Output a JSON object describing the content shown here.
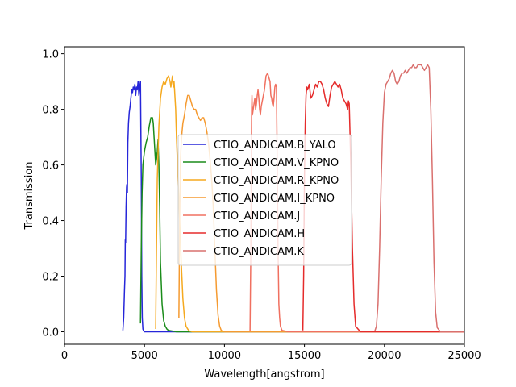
{
  "chart_data": {
    "type": "line",
    "title": "",
    "xlabel": "Wavelength[angstrom]",
    "ylabel": "Transmission",
    "xlim": [
      0,
      25000
    ],
    "ylim": [
      -0.045,
      1.025
    ],
    "xticks": [
      0,
      5000,
      10000,
      15000,
      20000,
      25000
    ],
    "xtick_labels": [
      "0",
      "5000",
      "10000",
      "15000",
      "20000",
      "25000"
    ],
    "yticks": [
      0.0,
      0.2,
      0.4,
      0.6,
      0.8,
      1.0
    ],
    "ytick_labels": [
      "0.0",
      "0.2",
      "0.4",
      "0.6",
      "0.8",
      "1.0"
    ],
    "grid": false,
    "legend_position": "center",
    "series": [
      {
        "name": "CTIO_ANDICAM.B_YALO",
        "color": "#2626d9",
        "x": [
          3650,
          3700,
          3750,
          3780,
          3800,
          3820,
          3850,
          3880,
          3900,
          3930,
          3960,
          4000,
          4050,
          4100,
          4150,
          4200,
          4250,
          4300,
          4350,
          4400,
          4450,
          4500,
          4550,
          4600,
          4650,
          4700,
          4750,
          4800,
          4830,
          4860,
          4900,
          4950,
          5000,
          5500,
          6000,
          8000,
          10000,
          15000,
          20000,
          25000
        ],
        "y": [
          0.005,
          0.05,
          0.15,
          0.2,
          0.33,
          0.32,
          0.45,
          0.52,
          0.53,
          0.5,
          0.68,
          0.75,
          0.79,
          0.81,
          0.84,
          0.87,
          0.86,
          0.88,
          0.87,
          0.89,
          0.85,
          0.88,
          0.87,
          0.9,
          0.85,
          0.88,
          0.9,
          0.55,
          0.2,
          0.05,
          0.01,
          0.003,
          0.0,
          0.0,
          0.0,
          0.0,
          0.0,
          0.0,
          0.0,
          0.0
        ]
      },
      {
        "name": "CTIO_ANDICAM.V_KPNO",
        "color": "#1a8c1a",
        "x": [
          4750,
          4800,
          4850,
          4900,
          5000,
          5100,
          5200,
          5300,
          5400,
          5500,
          5550,
          5600,
          5650,
          5700,
          5750,
          5800,
          5850,
          5900,
          5950,
          6000,
          6100,
          6200,
          6300,
          6400,
          6500,
          7000,
          8000,
          10000,
          15000,
          20000,
          25000
        ],
        "y": [
          0.03,
          0.3,
          0.5,
          0.6,
          0.65,
          0.68,
          0.7,
          0.74,
          0.77,
          0.77,
          0.75,
          0.7,
          0.65,
          0.6,
          0.62,
          0.65,
          0.69,
          0.6,
          0.45,
          0.25,
          0.1,
          0.04,
          0.02,
          0.01,
          0.005,
          0.0,
          0.0,
          0.0,
          0.0,
          0.0,
          0.0
        ]
      },
      {
        "name": "CTIO_ANDICAM.R_KPNO",
        "color": "#f5a91f",
        "x": [
          5700,
          5750,
          5800,
          5900,
          6000,
          6100,
          6200,
          6300,
          6400,
          6500,
          6600,
          6650,
          6700,
          6750,
          6800,
          6850,
          6900,
          6950,
          7000,
          7100,
          7200,
          7300,
          7400,
          7500,
          7600,
          7700,
          7800,
          8000,
          9000,
          10000,
          15000,
          20000,
          25000
        ],
        "y": [
          0.01,
          0.3,
          0.55,
          0.74,
          0.84,
          0.88,
          0.9,
          0.89,
          0.91,
          0.92,
          0.9,
          0.88,
          0.9,
          0.92,
          0.88,
          0.9,
          0.85,
          0.8,
          0.7,
          0.55,
          0.4,
          0.25,
          0.12,
          0.05,
          0.02,
          0.01,
          0.003,
          0.0,
          0.0,
          0.0,
          0.0,
          0.0,
          0.0
        ]
      },
      {
        "name": "CTIO_ANDICAM.I_KPNO",
        "color": "#f59a30",
        "x": [
          7150,
          7200,
          7250,
          7300,
          7350,
          7400,
          7500,
          7600,
          7700,
          7800,
          7900,
          8000,
          8100,
          8200,
          8300,
          8400,
          8500,
          8600,
          8700,
          8800,
          8900,
          9000,
          9100,
          9200,
          9300,
          9400,
          9500,
          9600,
          9700,
          9800,
          10000,
          12000,
          15000,
          20000,
          25000
        ],
        "y": [
          0.05,
          0.4,
          0.62,
          0.68,
          0.72,
          0.75,
          0.78,
          0.82,
          0.85,
          0.85,
          0.83,
          0.81,
          0.8,
          0.8,
          0.78,
          0.77,
          0.76,
          0.77,
          0.77,
          0.75,
          0.72,
          0.68,
          0.62,
          0.55,
          0.45,
          0.3,
          0.15,
          0.06,
          0.02,
          0.005,
          0.0,
          0.0,
          0.0,
          0.0,
          0.0
        ]
      },
      {
        "name": "CTIO_ANDICAM.J",
        "color": "#f07060",
        "x": [
          11600,
          11650,
          11700,
          11720,
          11750,
          11800,
          11850,
          11900,
          11950,
          12000,
          12050,
          12100,
          12150,
          12200,
          12250,
          12300,
          12400,
          12500,
          12600,
          12700,
          12800,
          12850,
          12900,
          12950,
          13000,
          13050,
          13100,
          13150,
          13200,
          13250,
          13300,
          13350,
          13400,
          13450,
          13500,
          13600,
          14000,
          15000,
          20000,
          25000
        ],
        "y": [
          0.003,
          0.3,
          0.8,
          0.85,
          0.78,
          0.8,
          0.82,
          0.84,
          0.8,
          0.82,
          0.85,
          0.87,
          0.84,
          0.8,
          0.78,
          0.81,
          0.84,
          0.87,
          0.92,
          0.93,
          0.91,
          0.9,
          0.85,
          0.84,
          0.82,
          0.81,
          0.84,
          0.88,
          0.89,
          0.88,
          0.6,
          0.3,
          0.1,
          0.05,
          0.02,
          0.005,
          0.0,
          0.0,
          0.0,
          0.0
        ]
      },
      {
        "name": "CTIO_ANDICAM.H",
        "color": "#e52b2b",
        "x": [
          14900,
          14950,
          15000,
          15050,
          15100,
          15150,
          15200,
          15300,
          15400,
          15500,
          15600,
          15700,
          15800,
          15900,
          16000,
          16100,
          16200,
          16300,
          16400,
          16500,
          16600,
          16700,
          16800,
          16900,
          17000,
          17100,
          17200,
          17300,
          17400,
          17500,
          17600,
          17700,
          17750,
          17800,
          17900,
          18000,
          18100,
          18200,
          18500,
          20000,
          25000
        ],
        "y": [
          0.005,
          0.2,
          0.55,
          0.75,
          0.85,
          0.88,
          0.87,
          0.89,
          0.84,
          0.85,
          0.87,
          0.89,
          0.88,
          0.9,
          0.9,
          0.89,
          0.87,
          0.84,
          0.82,
          0.81,
          0.85,
          0.88,
          0.89,
          0.9,
          0.89,
          0.88,
          0.89,
          0.87,
          0.84,
          0.83,
          0.82,
          0.8,
          0.83,
          0.82,
          0.6,
          0.3,
          0.1,
          0.02,
          0.0,
          0.0,
          0.0
        ]
      },
      {
        "name": "CTIO_ANDICAM.K",
        "color": "#d9706e",
        "x": [
          19400,
          19500,
          19600,
          19700,
          19800,
          19900,
          20000,
          20100,
          20200,
          20300,
          20400,
          20500,
          20600,
          20700,
          20800,
          20900,
          21000,
          21100,
          21200,
          21300,
          21400,
          21500,
          21600,
          21700,
          21800,
          21900,
          22000,
          22100,
          22200,
          22300,
          22400,
          22500,
          22600,
          22700,
          22800,
          22900,
          23000,
          23100,
          23200,
          23300,
          23500,
          25000
        ],
        "y": [
          0.003,
          0.02,
          0.1,
          0.3,
          0.55,
          0.75,
          0.86,
          0.89,
          0.9,
          0.91,
          0.93,
          0.94,
          0.93,
          0.9,
          0.89,
          0.9,
          0.92,
          0.93,
          0.93,
          0.94,
          0.93,
          0.94,
          0.95,
          0.95,
          0.96,
          0.95,
          0.95,
          0.96,
          0.96,
          0.96,
          0.95,
          0.94,
          0.95,
          0.96,
          0.95,
          0.8,
          0.55,
          0.25,
          0.07,
          0.015,
          0.0,
          0.0
        ]
      }
    ]
  }
}
